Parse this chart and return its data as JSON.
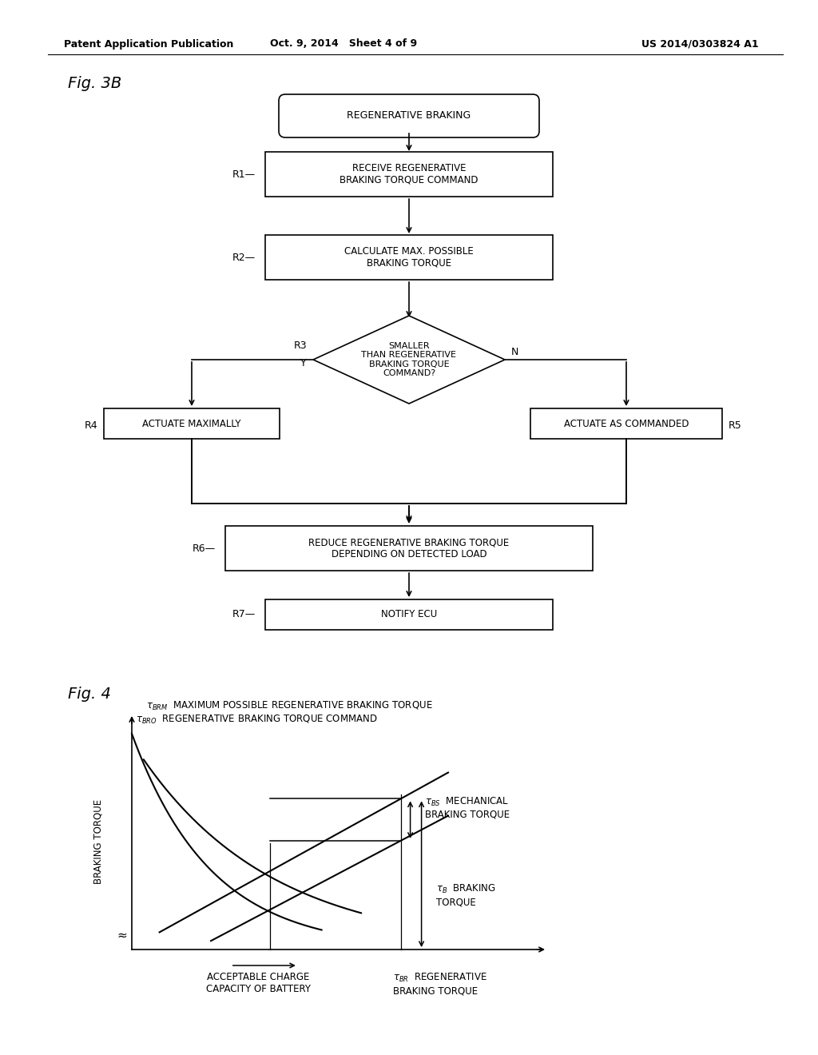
{
  "bg_color": "#ffffff",
  "header_left": "Patent Application Publication",
  "header_mid": "Oct. 9, 2014   Sheet 4 of 9",
  "header_right": "US 2014/0303824 A1",
  "fig3b_label": "Fig. 3B",
  "fig4_label": "Fig. 4"
}
